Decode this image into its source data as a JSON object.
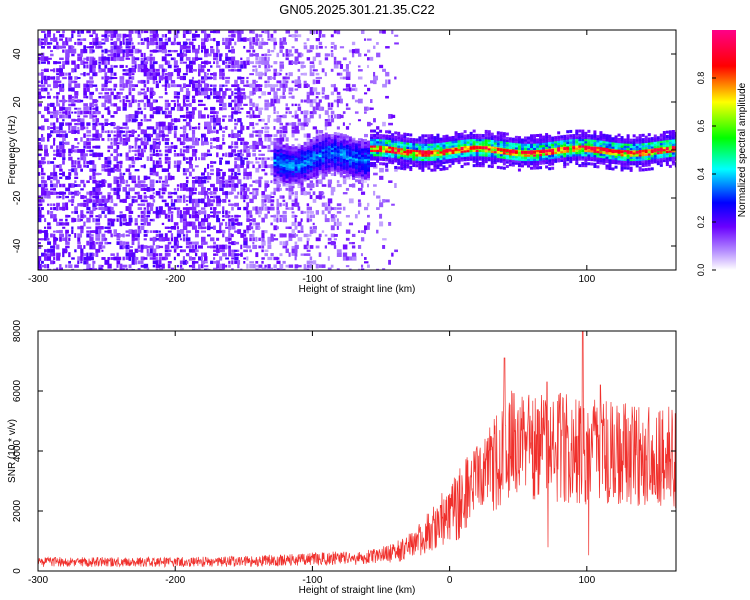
{
  "title": "GN05.2025.301.21.35.C22",
  "colors": {
    "snr_line": "#f0302c",
    "axis": "#000000",
    "spectrogram_bg": "#ffffff"
  },
  "chart_data": [
    {
      "type": "heatmap",
      "name": "spectrogram",
      "xlabel": "Height of straight line (km)",
      "ylabel": "Frequency (Hz)",
      "xlim": [
        -300,
        165
      ],
      "ylim": [
        -50,
        50
      ],
      "xticks": [
        -300,
        -200,
        -100,
        0,
        100
      ],
      "yticks": [
        -40,
        -20,
        0,
        20,
        40
      ],
      "colorbar": {
        "label": "Normalized spectral amplitude",
        "range": [
          0,
          1
        ],
        "ticks": [
          "0.0",
          "0.2",
          "0.4",
          "0.6",
          "0.8"
        ],
        "colormap": [
          "#ffffff",
          "#7b00ff",
          "#0000ff",
          "#00ffff",
          "#00ff00",
          "#ffff00",
          "#ff0000",
          "#ff0080"
        ]
      },
      "features": {
        "scatter_region_km": [
          -300,
          -60
        ],
        "ridge_start_km": -130,
        "ridge_center_hz": 0,
        "ridge_peak_amplitude": 0.95
      }
    },
    {
      "type": "line",
      "name": "snr",
      "xlabel": "Height of straight line (km)",
      "ylabel": "SNR (10 * v/v)",
      "xlim": [
        -300,
        165
      ],
      "ylim": [
        0,
        8000
      ],
      "xticks": [
        -300,
        -200,
        -100,
        0,
        100
      ],
      "yticks": [
        0,
        2000,
        4000,
        6000,
        8000
      ],
      "envelope": {
        "x": [
          -300,
          -250,
          -200,
          -150,
          -100,
          -60,
          -40,
          -20,
          0,
          10,
          20,
          30,
          40,
          50,
          60,
          80,
          100,
          120,
          140,
          165
        ],
        "y": [
          300,
          300,
          300,
          320,
          400,
          450,
          600,
          1100,
          1900,
          2500,
          3000,
          3500,
          4000,
          4300,
          4200,
          4100,
          4000,
          3900,
          3800,
          3800
        ]
      },
      "spikes": [
        {
          "x": 40,
          "y": 7100
        },
        {
          "x": 71,
          "y": 6300
        },
        {
          "x": 97,
          "y": 8000
        },
        {
          "x": 110,
          "y": 6200
        }
      ]
    }
  ]
}
